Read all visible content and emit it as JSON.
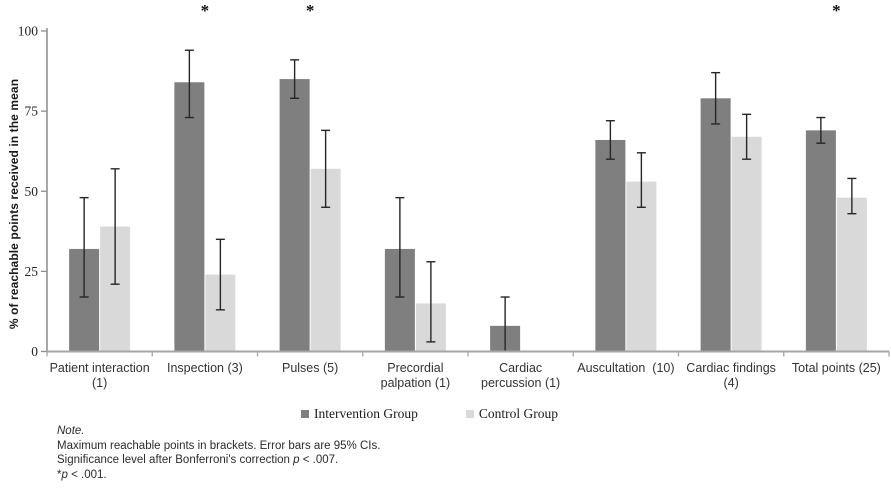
{
  "chart_data": {
    "type": "bar",
    "title": "",
    "ylabel": "% of reachable points  received in the mean",
    "xlabel": "",
    "ylim": [
      0,
      100
    ],
    "yticks": [
      0,
      25,
      50,
      75,
      100
    ],
    "grid": false,
    "legend_position": "bottom",
    "significance_marker": "*",
    "categories": [
      "Patient interaction (1)",
      "Inspection (3)",
      "Pulses (5)",
      "Precordial palpation (1)",
      "Cardiac percussion (1)",
      "Auscultation (10)",
      "Cardiac findings (4)",
      "Total points (25)"
    ],
    "category_lines": [
      [
        "Patient interaction",
        "(1)"
      ],
      [
        "Inspection (3)"
      ],
      [
        "Pulses (5)"
      ],
      [
        "Precordial",
        "palpation (1)"
      ],
      [
        "Cardiac",
        "percussion (1)"
      ],
      [
        "Auscultation  (10)"
      ],
      [
        "Cardiac findings",
        "(4)"
      ],
      [
        "Total points (25)"
      ]
    ],
    "significant": [
      false,
      true,
      true,
      false,
      false,
      false,
      false,
      true
    ],
    "series": [
      {
        "name": "Intervention Group",
        "color": "#7f7f7f",
        "values": [
          32,
          84,
          85,
          32,
          8,
          66,
          79,
          69
        ],
        "ci_low": [
          17,
          73,
          79,
          17,
          0,
          60,
          71,
          65
        ],
        "ci_high": [
          48,
          94,
          91,
          48,
          17,
          72,
          87,
          73
        ]
      },
      {
        "name": "Control Group",
        "color": "#d9d9d9",
        "values": [
          39,
          24,
          57,
          15,
          0,
          53,
          67,
          48
        ],
        "ci_low": [
          21,
          13,
          45,
          3,
          null,
          45,
          60,
          43
        ],
        "ci_high": [
          57,
          35,
          69,
          28,
          null,
          62,
          74,
          54
        ]
      }
    ],
    "colors": {
      "axis_x": "#a6a6a6",
      "axis_y": "#8c8c8c",
      "error_bar": "#262626",
      "tick_label": "#262626",
      "category_label": "#333333"
    }
  },
  "note": {
    "heading": "Note.",
    "line1": "Maximum reachable points in brackets. Error bars are 95% CIs.",
    "line2_prefix": "Significance level after Bonferroni's correction ",
    "line2_p": "p",
    "line2_suffix": " < .007.",
    "line3_star": "*",
    "line3_p": "p",
    "line3_suffix": " < .001."
  }
}
